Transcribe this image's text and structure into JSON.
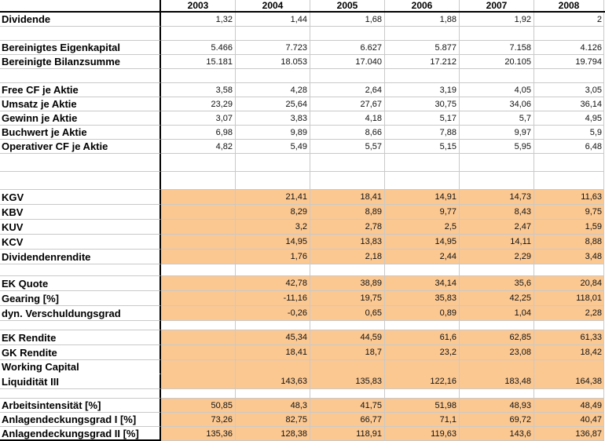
{
  "colors": {
    "highlight_fill": "#FBC892",
    "gridline": "#C9C9C9",
    "border_line": "#000000"
  },
  "table": {
    "corner_label": "",
    "columns": [
      "2003",
      "2004",
      "2005",
      "2006",
      "2007",
      "2008"
    ],
    "rows": [
      {
        "label": "Dividende",
        "values": [
          "1,32",
          "1,44",
          "1,68",
          "1,88",
          "1,92",
          "2"
        ],
        "highlight": false,
        "cls": "h18"
      },
      {
        "label": "",
        "values": [
          "",
          "",
          "",
          "",
          "",
          ""
        ],
        "highlight": false,
        "cls": "h18"
      },
      {
        "label": "Bereinigtes Eigenkapital",
        "values": [
          "5.466",
          "7.723",
          "6.627",
          "5.877",
          "7.158",
          "4.126"
        ],
        "highlight": false,
        "cls": "h18"
      },
      {
        "label": "Bereinigte Bilanzsumme",
        "values": [
          "15.181",
          "18.053",
          "17.040",
          "17.212",
          "20.105",
          "19.794"
        ],
        "highlight": false,
        "cls": "h18"
      },
      {
        "label": "",
        "values": [
          "",
          "",
          "",
          "",
          "",
          ""
        ],
        "highlight": false,
        "cls": "h18"
      },
      {
        "label": "Free CF je Aktie",
        "values": [
          "3,58",
          "4,28",
          "2,64",
          "3,19",
          "4,05",
          "3,05"
        ],
        "highlight": false,
        "cls": "h18"
      },
      {
        "label": "Umsatz je Aktie",
        "values": [
          "23,29",
          "25,64",
          "27,67",
          "30,75",
          "34,06",
          "36,14"
        ],
        "highlight": false,
        "cls": "h18"
      },
      {
        "label": "Gewinn je Aktie",
        "values": [
          "3,07",
          "3,83",
          "4,18",
          "5,17",
          "5,7",
          "4,95"
        ],
        "highlight": false,
        "cls": "h18"
      },
      {
        "label": "Buchwert je Aktie",
        "values": [
          "6,98",
          "9,89",
          "8,66",
          "7,88",
          "9,97",
          "5,9"
        ],
        "highlight": false,
        "cls": "h18"
      },
      {
        "label": "Operativer CF je Aktie",
        "values": [
          "4,82",
          "5,49",
          "5,57",
          "5,15",
          "5,95",
          "6,48"
        ],
        "highlight": false,
        "cls": "h18"
      },
      {
        "label": "",
        "values": [
          "",
          "",
          "",
          "",
          "",
          ""
        ],
        "highlight": false,
        "cls": "h23"
      },
      {
        "label": "",
        "values": [
          "",
          "",
          "",
          "",
          "",
          ""
        ],
        "highlight": false,
        "cls": "h23"
      },
      {
        "label": "KGV",
        "values": [
          "",
          "21,41",
          "18,41",
          "14,91",
          "14,73",
          "11,63"
        ],
        "highlight": true,
        "cls": "h19"
      },
      {
        "label": "KBV",
        "values": [
          "",
          "8,29",
          "8,89",
          "9,77",
          "8,43",
          "9,75"
        ],
        "highlight": true,
        "cls": "h19"
      },
      {
        "label": "KUV",
        "values": [
          "",
          "3,2",
          "2,78",
          "2,5",
          "2,47",
          "1,59"
        ],
        "highlight": true,
        "cls": "h19"
      },
      {
        "label": "KCV",
        "values": [
          "",
          "14,95",
          "13,83",
          "14,95",
          "14,11",
          "8,88"
        ],
        "highlight": true,
        "cls": "h19"
      },
      {
        "label": "Dividendenrendite",
        "values": [
          "",
          "1,76",
          "2,18",
          "2,44",
          "2,29",
          "3,48"
        ],
        "highlight": true,
        "cls": "h19"
      },
      {
        "label": "",
        "values": [
          "",
          "",
          "",
          "",
          "",
          ""
        ],
        "highlight": false,
        "cls": "h15"
      },
      {
        "label": "EK Quote",
        "values": [
          "",
          "42,78",
          "38,89",
          "34,14",
          "35,6",
          "20,84"
        ],
        "highlight": true,
        "cls": "h19"
      },
      {
        "label": "Gearing [%]",
        "values": [
          "",
          "-11,16",
          "19,75",
          "35,83",
          "42,25",
          "118,01"
        ],
        "highlight": true,
        "cls": "h19"
      },
      {
        "label": "dyn. Verschuldungsgrad",
        "values": [
          "",
          "-0,26",
          "0,65",
          "0,89",
          "1,04",
          "2,28"
        ],
        "highlight": true,
        "cls": "h19"
      },
      {
        "label": "",
        "values": [
          "",
          "",
          "",
          "",
          "",
          ""
        ],
        "highlight": false,
        "cls": "h12"
      },
      {
        "label": "EK Rendite",
        "values": [
          "",
          "45,34",
          "44,59",
          "61,6",
          "62,85",
          "61,33"
        ],
        "highlight": true,
        "cls": "h19"
      },
      {
        "label": "GK Rendite",
        "values": [
          "",
          "18,41",
          "18,7",
          "23,2",
          "23,08",
          "18,42"
        ],
        "highlight": true,
        "cls": "h19"
      },
      {
        "label": "Working Capital",
        "values": [
          "",
          "",
          "",
          "",
          "",
          ""
        ],
        "highlight": true,
        "cls": "h18",
        "merge_below": true
      },
      {
        "label": "Liquidität III",
        "values": [
          "",
          "143,63",
          "135,83",
          "122,16",
          "183,48",
          "164,38"
        ],
        "highlight": true,
        "cls": "h19"
      },
      {
        "label": "",
        "values": [
          "",
          "",
          "",
          "",
          "",
          ""
        ],
        "highlight": false,
        "cls": "h12"
      },
      {
        "label": "Arbeitsintensität [%]",
        "values": [
          "50,85",
          "48,3",
          "41,75",
          "51,98",
          "48,93",
          "48,49"
        ],
        "highlight": true,
        "cls": "h18"
      },
      {
        "label": "Anlagendeckungsgrad I [%]",
        "values": [
          "73,26",
          "82,75",
          "66,77",
          "71,1",
          "69,72",
          "40,47"
        ],
        "highlight": true,
        "cls": "h18"
      },
      {
        "label": "Anlagendeckungsgrad II [%]",
        "values": [
          "135,36",
          "128,38",
          "118,91",
          "119,63",
          "143,6",
          "136,87"
        ],
        "highlight": true,
        "cls": "h18",
        "last": true
      }
    ]
  }
}
